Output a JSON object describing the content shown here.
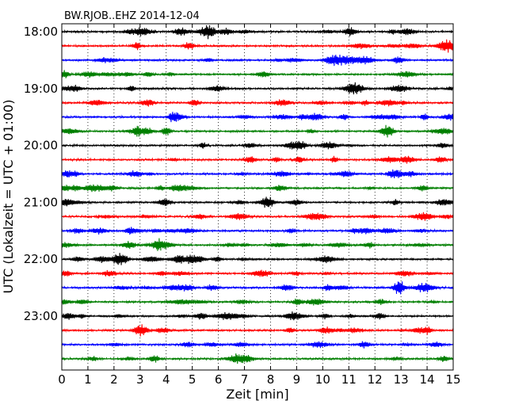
{
  "chart_data": {
    "type": "line",
    "title": "BW.RJOB..EHZ 2014-12-04",
    "xlabel": "Zeit  [min]",
    "ylabel": "UTC (Lokalzeit = UTC + 01:00)",
    "xlim": [
      0,
      15
    ],
    "x_ticks": [
      "0",
      "1",
      "2",
      "3",
      "4",
      "5",
      "6",
      "7",
      "8",
      "9",
      "10",
      "11",
      "12",
      "13",
      "14",
      "15"
    ],
    "grid": "vertical dotted lines at each minute",
    "row_interval_min": 15,
    "colors": [
      "#000000",
      "#ff0000",
      "#0000ff",
      "#007f00"
    ],
    "y_tick_labels": [
      "18:00",
      "19:00",
      "20:00",
      "21:00",
      "22:00",
      "23:00"
    ],
    "rows": [
      {
        "start": "18:00",
        "color": "#000000"
      },
      {
        "start": "18:15",
        "color": "#ff0000"
      },
      {
        "start": "18:30",
        "color": "#0000ff"
      },
      {
        "start": "18:45",
        "color": "#007f00"
      },
      {
        "start": "19:00",
        "color": "#000000"
      },
      {
        "start": "19:15",
        "color": "#ff0000"
      },
      {
        "start": "19:30",
        "color": "#0000ff"
      },
      {
        "start": "19:45",
        "color": "#007f00"
      },
      {
        "start": "20:00",
        "color": "#000000"
      },
      {
        "start": "20:15",
        "color": "#ff0000"
      },
      {
        "start": "20:30",
        "color": "#0000ff"
      },
      {
        "start": "20:45",
        "color": "#007f00"
      },
      {
        "start": "21:00",
        "color": "#000000"
      },
      {
        "start": "21:15",
        "color": "#ff0000"
      },
      {
        "start": "21:30",
        "color": "#0000ff"
      },
      {
        "start": "21:45",
        "color": "#007f00"
      },
      {
        "start": "22:00",
        "color": "#000000"
      },
      {
        "start": "22:15",
        "color": "#ff0000"
      },
      {
        "start": "22:30",
        "color": "#0000ff"
      },
      {
        "start": "22:45",
        "color": "#007f00"
      },
      {
        "start": "23:00",
        "color": "#000000"
      },
      {
        "start": "23:15",
        "color": "#ff0000"
      },
      {
        "start": "23:30",
        "color": "#0000ff"
      },
      {
        "start": "23:45",
        "color": "#007f00"
      }
    ]
  }
}
